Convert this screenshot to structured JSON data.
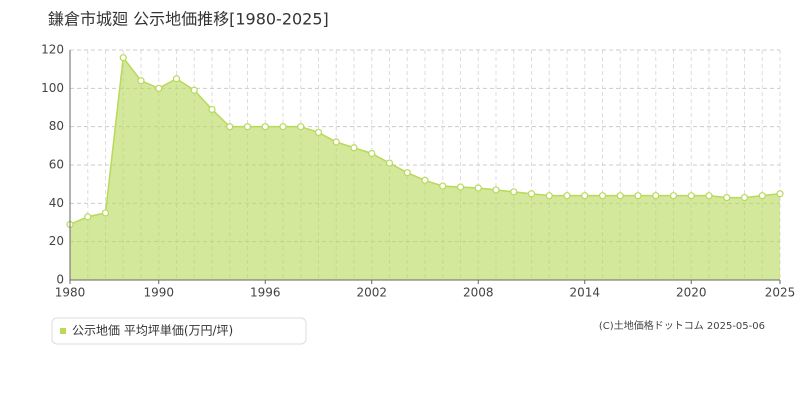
{
  "chart_data": {
    "type": "area",
    "title": "鎌倉市城廻 公示地価推移[1980-2025]",
    "categories": [
      "1980",
      null,
      null,
      null,
      null,
      "1990",
      null,
      null,
      null,
      null,
      null,
      "1996",
      null,
      null,
      null,
      null,
      null,
      "2002",
      null,
      null,
      null,
      null,
      null,
      "2008",
      null,
      null,
      null,
      null,
      null,
      "2014",
      null,
      null,
      null,
      null,
      null,
      "2020",
      null,
      null,
      null,
      null,
      "2025"
    ],
    "series": [
      {
        "name": "公示地価 平均坪単価(万円/坪)",
        "color": "#b8d95a",
        "values": [
          29,
          33,
          35,
          116,
          104,
          100,
          105,
          99,
          89,
          80,
          80,
          80,
          80,
          80,
          77,
          72,
          69,
          66,
          61,
          56,
          52,
          49,
          48.5,
          48,
          47,
          46,
          45,
          44,
          44,
          44,
          44,
          44,
          44,
          44,
          44,
          44,
          44,
          43,
          43,
          44,
          45
        ]
      }
    ],
    "ylim": [
      0,
      120
    ],
    "yticks": [
      0,
      20,
      40,
      60,
      80,
      100,
      120
    ],
    "grid": true,
    "copyright": "(C)土地価格ドットコム 2025-05-06"
  }
}
